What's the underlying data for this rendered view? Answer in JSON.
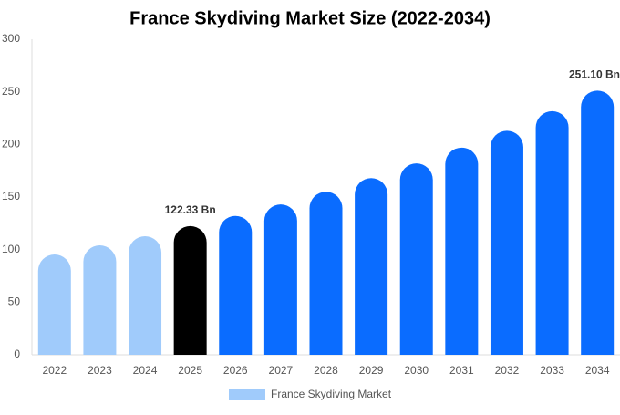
{
  "chart_data": {
    "type": "bar",
    "title": "France Skydiving Market Size (2022-2034)",
    "categories": [
      "2022",
      "2023",
      "2024",
      "2025",
      "2026",
      "2027",
      "2028",
      "2029",
      "2030",
      "2031",
      "2032",
      "2033",
      "2034"
    ],
    "series": [
      {
        "name": "France Skydiving Market",
        "color": "#a0cbfb",
        "values": [
          95.4,
          104,
          112.7,
          122.33,
          132,
          143,
          155,
          168,
          182,
          197,
          213,
          231.6,
          251.1
        ],
        "value_labels": [
          null,
          null,
          null,
          "122.33 Bn",
          null,
          null,
          null,
          null,
          null,
          null,
          null,
          null,
          "251.10 Bn"
        ],
        "bar_colors": [
          "#a0cbfb",
          "#a0cbfb",
          "#a0cbfb",
          "#000000",
          "#0a6cff",
          "#0a6cff",
          "#0a6cff",
          "#0a6cff",
          "#0a6cff",
          "#0a6cff",
          "#0a6cff",
          "#0a6cff",
          "#0a6cff"
        ]
      }
    ],
    "ylim": [
      0,
      300
    ],
    "yticks": [
      0,
      50,
      100,
      150,
      200,
      250,
      300
    ],
    "grid": false,
    "legend": "bottom"
  }
}
